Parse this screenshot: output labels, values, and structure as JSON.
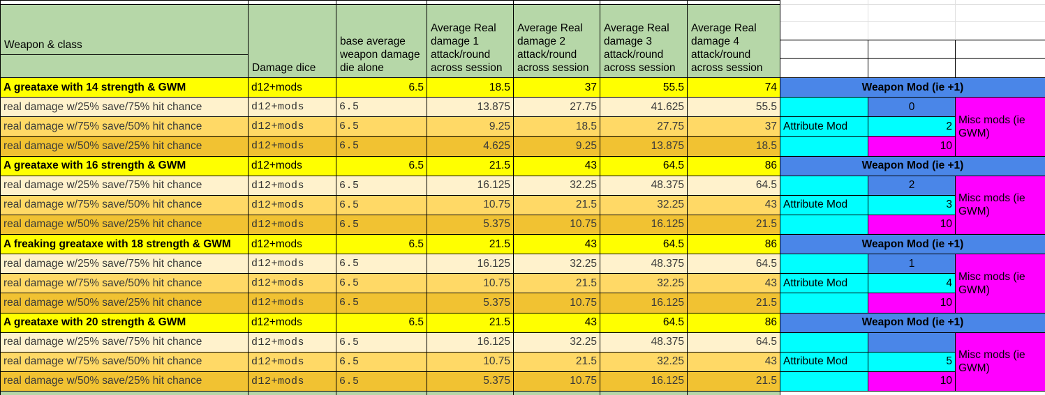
{
  "colors": {
    "header_green": "#b6d7a8",
    "title_yellow": "#ffff00",
    "row_light": "#fff2cc",
    "row_mid": "#ffd966",
    "row_dark": "#f1c232",
    "panel_blue": "#4a86e8",
    "panel_cyan": "#00ffff",
    "panel_magenta": "#ff00ff"
  },
  "header": {
    "weapon_class": "Weapon & class",
    "damage_dice": "Damage dice",
    "base_avg": "base average weapon damage die alone",
    "avg1": "Average Real damage 1 attack/round across session",
    "avg2": "Average Real damage 2 attack/round across session",
    "avg3": "Average Real damage 3 attack/round across session",
    "avg4": "Average Real damage 4 attack/round across session"
  },
  "rows": [
    {
      "kind": "title",
      "label": "A greataxe with 14 strength & GWM",
      "dice": "d12+mods",
      "base": "6.5",
      "d1": "18.5",
      "d2": "37",
      "d3": "55.5",
      "d4": "74"
    },
    {
      "kind": "light",
      "label": "real damage w/25% save/75% hit chance",
      "dice": "d12+mods",
      "base": "6.5",
      "d1": "13.875",
      "d2": "27.75",
      "d3": "41.625",
      "d4": "55.5"
    },
    {
      "kind": "mid",
      "label": "real damage w/75% save/50% hit chance",
      "dice": "d12+mods",
      "base": "6.5",
      "d1": "9.25",
      "d2": "18.5",
      "d3": "27.75",
      "d4": "37"
    },
    {
      "kind": "dark",
      "label": "real damage w/50% save/25% hit chance",
      "dice": "d12+mods",
      "base": "6.5",
      "d1": "4.625",
      "d2": "9.25",
      "d3": "13.875",
      "d4": "18.5"
    },
    {
      "kind": "title",
      "label": "A greataxe with 16 strength & GWM",
      "dice": "d12+mods",
      "base": "6.5",
      "d1": "21.5",
      "d2": "43",
      "d3": "64.5",
      "d4": "86"
    },
    {
      "kind": "light",
      "label": "real damage w/25% save/75% hit chance",
      "dice": "d12+mods",
      "base": "6.5",
      "d1": "16.125",
      "d2": "32.25",
      "d3": "48.375",
      "d4": "64.5"
    },
    {
      "kind": "mid",
      "label": "real damage w/75% save/50% hit chance",
      "dice": "d12+mods",
      "base": "6.5",
      "d1": "10.75",
      "d2": "21.5",
      "d3": "32.25",
      "d4": "43"
    },
    {
      "kind": "dark",
      "label": "real damage w/50% save/25% hit chance",
      "dice": "d12+mods",
      "base": "6.5",
      "d1": "5.375",
      "d2": "10.75",
      "d3": "16.125",
      "d4": "21.5"
    },
    {
      "kind": "title",
      "label": "A freaking greataxe with 18 strength & GWM",
      "dice": "d12+mods",
      "base": "6.5",
      "d1": "21.5",
      "d2": "43",
      "d3": "64.5",
      "d4": "86"
    },
    {
      "kind": "light",
      "label": "real damage w/25% save/75% hit chance",
      "dice": "d12+mods",
      "base": "6.5",
      "d1": "16.125",
      "d2": "32.25",
      "d3": "48.375",
      "d4": "64.5"
    },
    {
      "kind": "mid",
      "label": "real damage w/75% save/50% hit chance",
      "dice": "d12+mods",
      "base": "6.5",
      "d1": "10.75",
      "d2": "21.5",
      "d3": "32.25",
      "d4": "43"
    },
    {
      "kind": "dark",
      "label": "real damage w/50% save/25% hit chance",
      "dice": "d12+mods",
      "base": "6.5",
      "d1": "5.375",
      "d2": "10.75",
      "d3": "16.125",
      "d4": "21.5"
    },
    {
      "kind": "title",
      "label": "A greataxe with 20 strength & GWM",
      "dice": "d12+mods",
      "base": "6.5",
      "d1": "21.5",
      "d2": "43",
      "d3": "64.5",
      "d4": "86"
    },
    {
      "kind": "light",
      "label": "real damage w/25% save/75% hit chance",
      "dice": "d12+mods",
      "base": "6.5",
      "d1": "16.125",
      "d2": "32.25",
      "d3": "48.375",
      "d4": "64.5"
    },
    {
      "kind": "mid",
      "label": "real damage w/75% save/50% hit chance",
      "dice": "d12+mods",
      "base": "6.5",
      "d1": "10.75",
      "d2": "21.5",
      "d3": "32.25",
      "d4": "43"
    },
    {
      "kind": "dark",
      "label": "real damage w/50% save/25% hit chance",
      "dice": "d12+mods",
      "base": "6.5",
      "d1": "5.375",
      "d2": "10.75",
      "d3": "16.125",
      "d4": "21.5"
    }
  ],
  "mod_panel": {
    "header_label": "Weapon Mod (ie +1)",
    "attribute_label": "Attribute Mod",
    "misc_label": "Misc mods (ie GWM)",
    "groups": [
      {
        "weapon_mod": "0",
        "attribute_mod": "2",
        "misc_mod": "10"
      },
      {
        "weapon_mod": "2",
        "attribute_mod": "3",
        "misc_mod": "10"
      },
      {
        "weapon_mod": "1",
        "attribute_mod": "4",
        "misc_mod": "10"
      },
      {
        "weapon_mod": "",
        "attribute_mod": "5",
        "misc_mod": "10"
      }
    ]
  }
}
